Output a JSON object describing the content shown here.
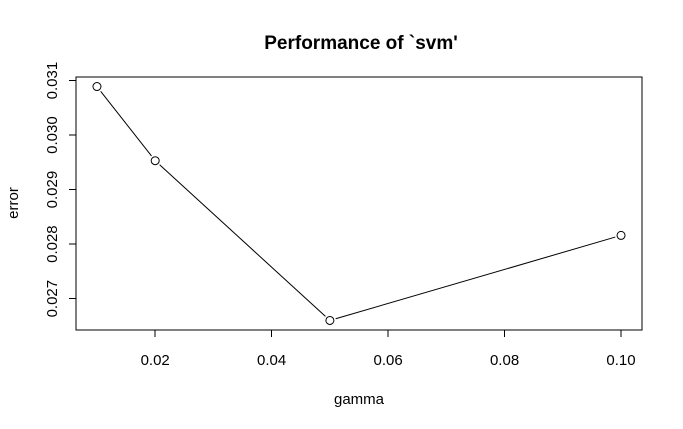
{
  "chart_data": {
    "type": "line",
    "title": "Performance of `svm'",
    "xlabel": "gamma",
    "ylabel": "error",
    "x": [
      0.01,
      0.02,
      0.05,
      0.1
    ],
    "series": [
      {
        "values": [
          0.03089,
          0.02953,
          0.0266,
          0.02816
        ],
        "color": "#000000",
        "marker": "open-circle"
      }
    ],
    "xlim": [
      0.0064,
      0.1036
    ],
    "ylim": [
      0.026425,
      0.031065
    ],
    "x_ticks": [
      {
        "value": 0.02,
        "label": "0.02"
      },
      {
        "value": 0.04,
        "label": "0.04"
      },
      {
        "value": 0.06,
        "label": "0.06"
      },
      {
        "value": 0.08,
        "label": "0.08"
      },
      {
        "value": 0.1,
        "label": "0.10"
      }
    ],
    "y_ticks": [
      {
        "value": 0.027,
        "label": "0.027"
      },
      {
        "value": 0.028,
        "label": "0.028"
      },
      {
        "value": 0.029,
        "label": "0.029"
      },
      {
        "value": 0.03,
        "label": "0.030"
      },
      {
        "value": 0.031,
        "label": "0.031"
      }
    ],
    "grid": false,
    "legend": "none"
  }
}
